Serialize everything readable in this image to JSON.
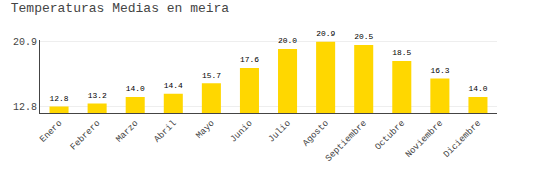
{
  "chart_data": {
    "type": "bar",
    "title": "Temperaturas Medias en meira",
    "categories": [
      "Enero",
      "Febrero",
      "Marzo",
      "Abril",
      "Mayo",
      "Junio",
      "Julio",
      "Agosto",
      "Septiembre",
      "Octubre",
      "Noviembre",
      "Diciembre"
    ],
    "values": [
      12.8,
      13.2,
      14.0,
      14.4,
      15.7,
      17.6,
      20.0,
      20.9,
      20.5,
      18.5,
      16.3,
      14.0
    ],
    "value_labels": [
      "12.8",
      "13.2",
      "14.0",
      "14.4",
      "15.7",
      "17.6",
      "20.0",
      "20.9",
      "20.5",
      "18.5",
      "16.3",
      "14.0"
    ],
    "color": "#FFD700",
    "ylim": [
      12.0,
      21.109
    ],
    "yticks": [
      12.8,
      20.9
    ],
    "y2lim": [
      12.0,
      21.109
    ],
    "y2ticks": [
      12.8,
      20.9
    ],
    "grid": true,
    "data_labels": true
  }
}
